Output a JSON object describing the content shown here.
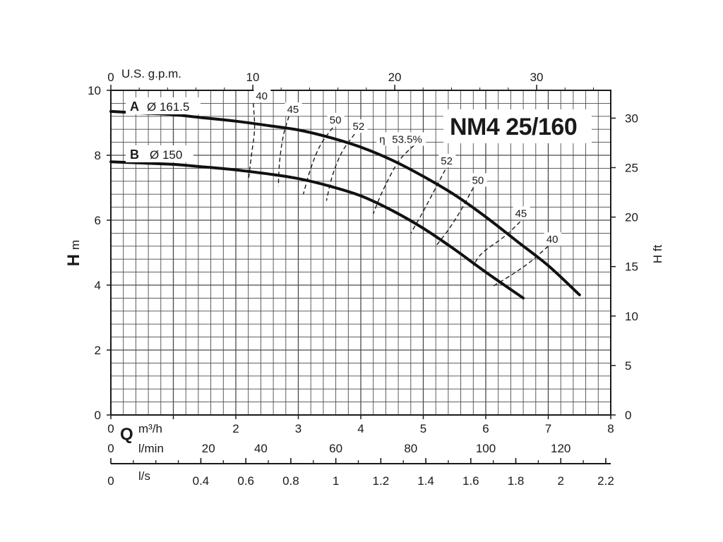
{
  "chart_data": {
    "type": "line",
    "title": "NM4 25/160",
    "axes": {
      "x_m3h": {
        "unit_q": "Q",
        "unit": "m³/h",
        "ticks": [
          0,
          1,
          2,
          3,
          4,
          5,
          6,
          7,
          8
        ],
        "range": [
          0,
          8
        ]
      },
      "x_gpm": {
        "unit": "U.S. g.p.m.",
        "ticks": [
          0,
          10,
          20,
          30
        ],
        "range": [
          0,
          35.22
        ]
      },
      "x_lmin": {
        "unit": "l/min",
        "ticks": [
          0,
          20,
          40,
          60,
          80,
          100,
          120
        ],
        "range": [
          0,
          133.33
        ]
      },
      "x_ls": {
        "unit": "l/s",
        "ticks": [
          "0",
          "0.4",
          "0.6",
          "0.8",
          "1",
          "1.2",
          "1.4",
          "1.6",
          "1.8",
          "2",
          "2.2"
        ],
        "tick_values": [
          0,
          0.4,
          0.6,
          0.8,
          1,
          1.2,
          1.4,
          1.6,
          1.8,
          2,
          2.2
        ],
        "range": [
          0,
          2.222
        ]
      },
      "y_m": {
        "label_h": "H",
        "unit": "m",
        "ticks": [
          0,
          2,
          4,
          6,
          8,
          10
        ],
        "range": [
          0,
          10
        ]
      },
      "y_ft": {
        "label": "H ft",
        "ticks": [
          0,
          5,
          10,
          15,
          20,
          25,
          30
        ],
        "range": [
          0,
          32.81
        ]
      }
    },
    "grid": true,
    "series": [
      {
        "name": "A",
        "diameter": "Ø 161.5",
        "x": [
          0,
          0.5,
          1,
          1.5,
          2,
          2.5,
          3,
          3.5,
          4,
          4.5,
          5,
          5.5,
          6,
          6.5,
          7,
          7.5
        ],
        "y": [
          9.35,
          9.3,
          9.25,
          9.15,
          9.05,
          8.92,
          8.78,
          8.55,
          8.25,
          7.85,
          7.35,
          6.78,
          6.1,
          5.35,
          4.6,
          3.7
        ]
      },
      {
        "name": "B",
        "diameter": "Ø 150",
        "x": [
          0,
          0.5,
          1,
          1.5,
          2,
          2.5,
          3,
          3.5,
          4,
          4.5,
          5,
          5.5,
          6,
          6.6
        ],
        "y": [
          7.8,
          7.76,
          7.72,
          7.64,
          7.55,
          7.43,
          7.28,
          7.05,
          6.75,
          6.3,
          5.75,
          5.1,
          4.4,
          3.6
        ]
      }
    ],
    "efficiency_prefix": "η",
    "efficiency_lines": [
      {
        "label": "40",
        "x": [
          2.28,
          2.3,
          2.25,
          2.2
        ],
        "y": [
          9.6,
          8.8,
          8.0,
          7.2
        ]
      },
      {
        "label": "45",
        "x": [
          2.85,
          2.76,
          2.7,
          2.68
        ],
        "y": [
          9.2,
          8.6,
          7.8,
          7.05
        ]
      },
      {
        "label": "50",
        "x": [
          3.55,
          3.35,
          3.2,
          3.08
        ],
        "y": [
          8.85,
          8.3,
          7.6,
          6.8
        ]
      },
      {
        "label": "52",
        "x": [
          3.9,
          3.7,
          3.55,
          3.45
        ],
        "y": [
          8.65,
          8.1,
          7.4,
          6.6
        ]
      },
      {
        "label": "53.5%",
        "x": [
          4.85,
          4.6,
          4.35,
          4.2
        ],
        "y": [
          8.3,
          7.8,
          6.9,
          6.2
        ]
      },
      {
        "label": "52",
        "x": [
          5.35,
          5.2,
          4.98,
          4.8
        ],
        "y": [
          7.55,
          7.0,
          6.2,
          5.6
        ]
      },
      {
        "label": "50",
        "x": [
          5.8,
          5.6,
          5.4,
          5.2
        ],
        "y": [
          7.0,
          6.3,
          5.7,
          5.2
        ]
      },
      {
        "label": "45",
        "x": [
          6.55,
          6.3,
          5.95,
          5.8
        ],
        "y": [
          5.95,
          5.5,
          5.0,
          4.6
        ]
      },
      {
        "label": "40",
        "x": [
          7.0,
          6.7,
          6.4,
          6.1
        ],
        "y": [
          5.2,
          4.7,
          4.3,
          3.95
        ]
      }
    ],
    "efficiency_label_pos": [
      {
        "x": 2.32,
        "y": 9.72
      },
      {
        "x": 2.82,
        "y": 9.3
      },
      {
        "x": 3.5,
        "y": 8.98
      },
      {
        "x": 3.87,
        "y": 8.78
      },
      {
        "x": 4.5,
        "y": 8.38
      },
      {
        "x": 5.28,
        "y": 7.72
      },
      {
        "x": 5.78,
        "y": 7.12
      },
      {
        "x": 6.47,
        "y": 6.1
      },
      {
        "x": 6.97,
        "y": 5.3
      }
    ]
  }
}
